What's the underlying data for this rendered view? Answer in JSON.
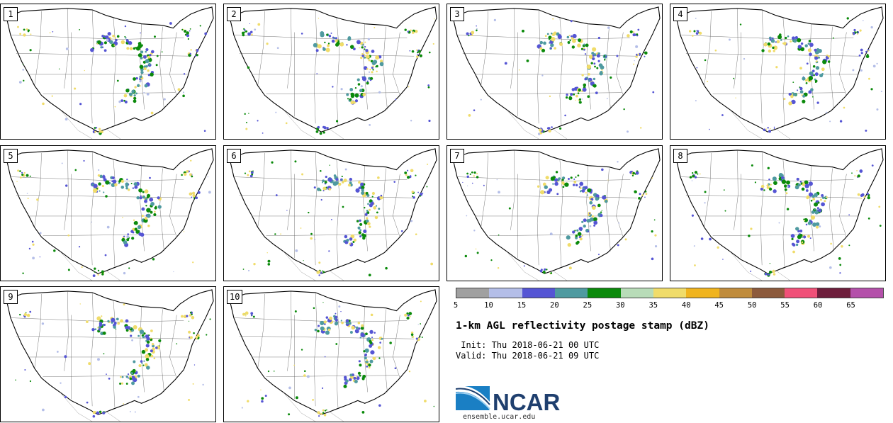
{
  "panels": [
    {
      "label": "1"
    },
    {
      "label": "2"
    },
    {
      "label": "3"
    },
    {
      "label": "4"
    },
    {
      "label": "5"
    },
    {
      "label": "6"
    },
    {
      "label": "7"
    },
    {
      "label": "8"
    },
    {
      "label": "9"
    },
    {
      "label": "10"
    }
  ],
  "colorbar": {
    "colors": [
      "#a0a0a0",
      "#b4bee8",
      "#5555d4",
      "#4f9aa0",
      "#0b8a0b",
      "#b8dcb8",
      "#f0dc6a",
      "#f0b41e",
      "#c08c3c",
      "#8c5a3c",
      "#f05078",
      "#6e1e3c",
      "#b450aa"
    ],
    "ticks": [
      "5",
      "10",
      "15",
      "20",
      "25",
      "30",
      "35",
      "40",
      "45",
      "50",
      "55",
      "60",
      "65"
    ]
  },
  "title": "1-km AGL reflectivity postage stamp (dBZ)",
  "init": " Init: Thu 2018-06-21 00 UTC",
  "valid": "Valid: Thu 2018-06-21 09 UTC",
  "logo": {
    "text": "NCAR",
    "url": "ensemble.ucar.edu",
    "color": "#1f3f6e",
    "accent": "#1a7fc4"
  }
}
